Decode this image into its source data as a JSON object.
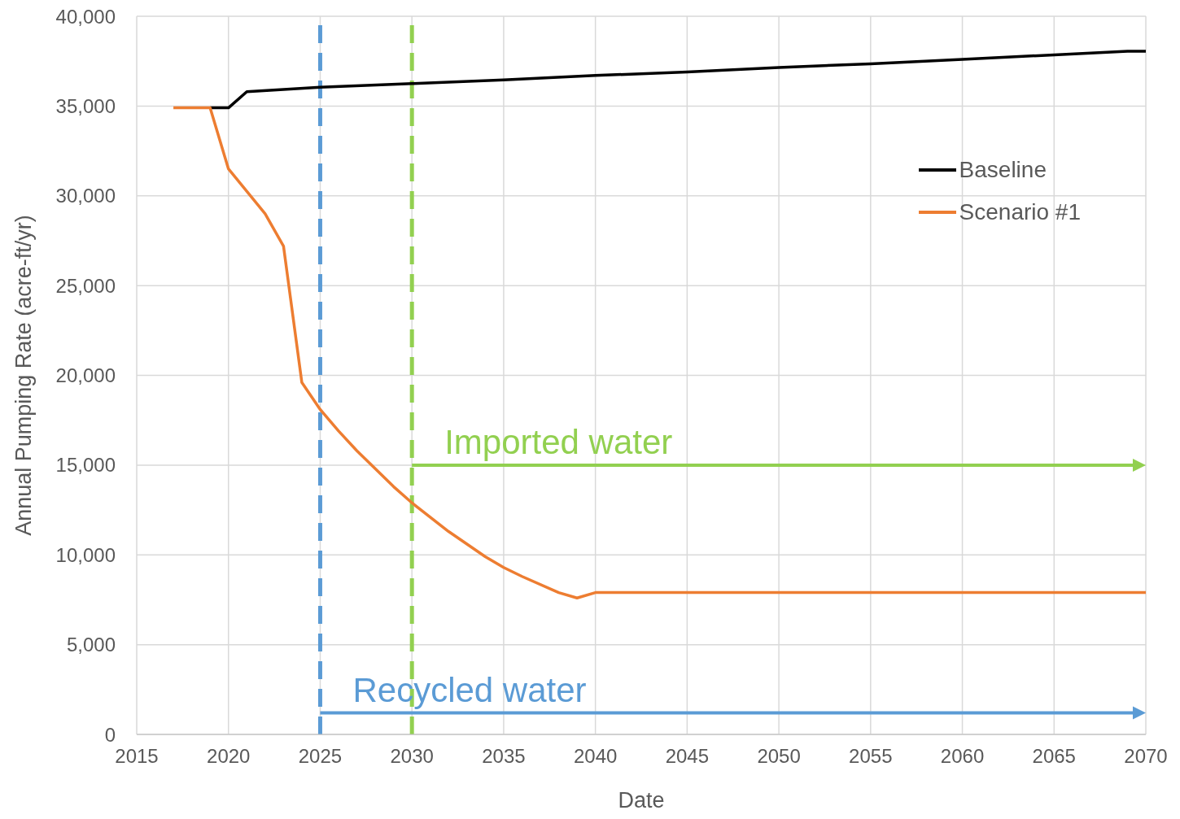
{
  "chart_data": {
    "type": "line",
    "xlabel": "Date",
    "ylabel": "Annual Pumping Rate (acre-ft/yr)",
    "xlim": [
      2015,
      2070
    ],
    "xticks": [
      2015,
      2020,
      2025,
      2030,
      2035,
      2040,
      2045,
      2050,
      2055,
      2060,
      2065,
      2070
    ],
    "ylim": [
      0,
      40000
    ],
    "yticks": [
      0,
      {
        "value": 5000,
        "label": "5,000"
      },
      {
        "value": 10000,
        "label": "10,000"
      },
      {
        "value": 15000,
        "label": "15,000"
      },
      {
        "value": 20000,
        "label": "20,000"
      },
      {
        "value": 25000,
        "label": "25,000"
      },
      {
        "value": 30000,
        "label": "30,000"
      },
      {
        "value": 35000,
        "label": "35,000"
      },
      {
        "value": 40000,
        "label": "40,000"
      }
    ],
    "grid": true,
    "legend": "top right",
    "marker": "none",
    "line_style": "solid",
    "series": [
      {
        "name": "Baseline",
        "color": "#000000",
        "x": [
          2019,
          2020,
          2021,
          2025,
          2030,
          2035,
          2040,
          2045,
          2050,
          2055,
          2060,
          2065,
          2067,
          2069,
          2070
        ],
        "values": [
          34900,
          34900,
          35800,
          36050,
          36250,
          36450,
          36700,
          36900,
          37150,
          37350,
          37600,
          37850,
          37950,
          38050,
          38050
        ]
      },
      {
        "name": "Scenario #1",
        "color": "#ed7d31",
        "x": [
          2017,
          2019,
          2020,
          2022,
          2023,
          2024,
          2025,
          2026,
          2027,
          2028,
          2029,
          2030,
          2032,
          2034,
          2035,
          2036,
          2038,
          2039,
          2040,
          2070
        ],
        "values": [
          34900,
          34900,
          31500,
          29000,
          27200,
          19600,
          18100,
          16900,
          15800,
          14800,
          13800,
          12900,
          11300,
          9900,
          9300,
          8800,
          7900,
          7600,
          7900,
          7900
        ]
      }
    ],
    "ref_lines": [
      {
        "axis": "x",
        "value": 2030,
        "color": "#92d050",
        "line_style": "dashed"
      },
      {
        "axis": "x",
        "value": 2025,
        "color": "#5b9bd5",
        "line_style": "dashed"
      }
    ],
    "annotations": [
      {
        "text": "Imported water",
        "x": 2030,
        "y": 15000
      },
      {
        "text": "Recycled water",
        "x": 2025,
        "y": 1200
      }
    ]
  }
}
